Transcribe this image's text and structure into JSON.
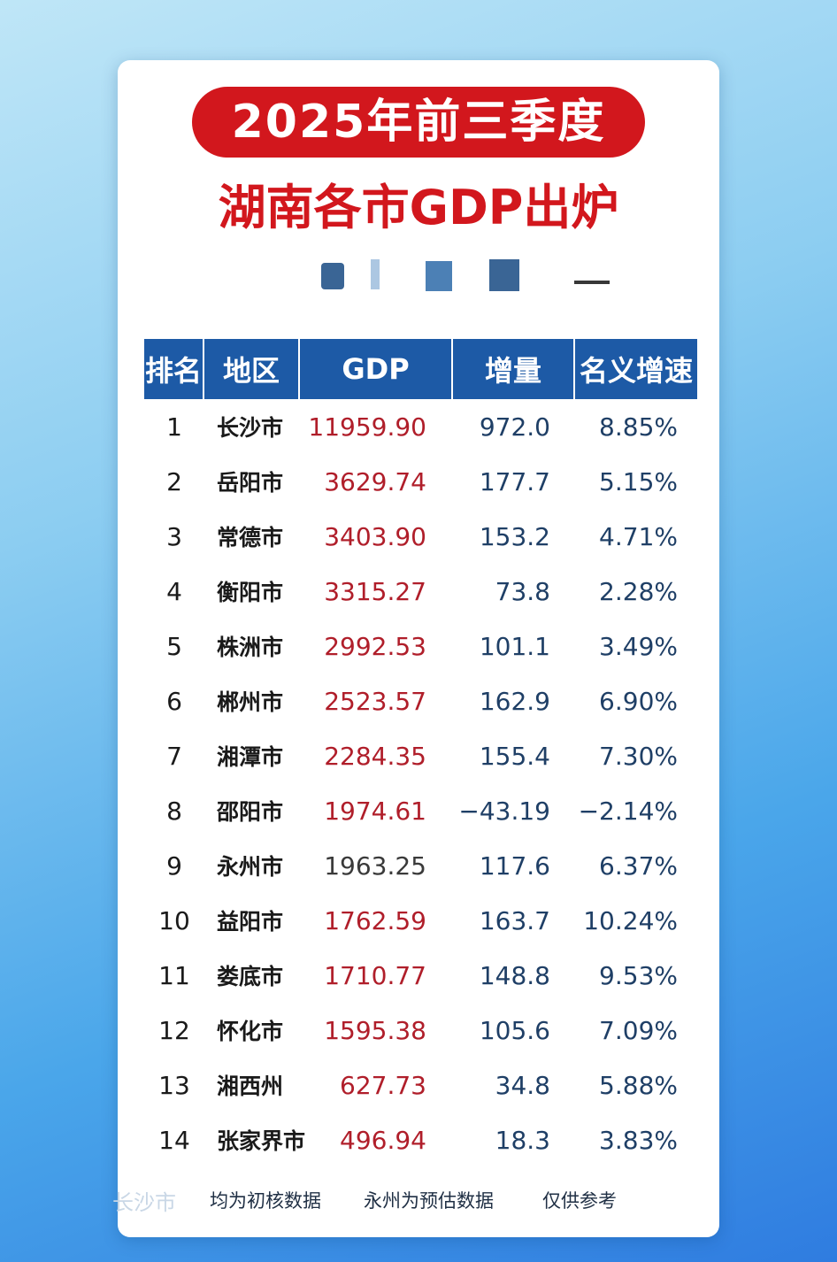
{
  "header": {
    "title": "2025年前三季度",
    "subtitle": "湖南各市GDP出炉"
  },
  "table": {
    "columns": [
      "排名",
      "地区",
      "GDP",
      "增量",
      "名义增速"
    ],
    "rows": [
      {
        "rank": "1",
        "city": "长沙市",
        "gdp": "11959.90",
        "inc": "972.0",
        "rate": "8.85%"
      },
      {
        "rank": "2",
        "city": "岳阳市",
        "gdp": "3629.74",
        "inc": "177.7",
        "rate": "5.15%"
      },
      {
        "rank": "3",
        "city": "常德市",
        "gdp": "3403.90",
        "inc": "153.2",
        "rate": "4.71%"
      },
      {
        "rank": "4",
        "city": "衡阳市",
        "gdp": "3315.27",
        "inc": "73.8",
        "rate": "2.28%"
      },
      {
        "rank": "5",
        "city": "株洲市",
        "gdp": "2992.53",
        "inc": "101.1",
        "rate": "3.49%"
      },
      {
        "rank": "6",
        "city": "郴州市",
        "gdp": "2523.57",
        "inc": "162.9",
        "rate": "6.90%"
      },
      {
        "rank": "7",
        "city": "湘潭市",
        "gdp": "2284.35",
        "inc": "155.4",
        "rate": "7.30%"
      },
      {
        "rank": "8",
        "city": "邵阳市",
        "gdp": "1974.61",
        "inc": "−43.19",
        "rate": "−2.14%"
      },
      {
        "rank": "9",
        "city": "永州市",
        "gdp": "1963.25",
        "inc": "117.6",
        "rate": "6.37%"
      },
      {
        "rank": "10",
        "city": "益阳市",
        "gdp": "1762.59",
        "inc": "163.7",
        "rate": "10.24%"
      },
      {
        "rank": "11",
        "city": "娄底市",
        "gdp": "1710.77",
        "inc": "148.8",
        "rate": "9.53%"
      },
      {
        "rank": "12",
        "city": "怀化市",
        "gdp": "1595.38",
        "inc": "105.6",
        "rate": "7.09%"
      },
      {
        "rank": "13",
        "city": "湘西州",
        "gdp": "627.73",
        "inc": "34.8",
        "rate": "5.88%"
      },
      {
        "rank": "14",
        "city": "张家界市",
        "gdp": "496.94",
        "inc": "18.3",
        "rate": "3.83%"
      }
    ]
  },
  "footer": {
    "ghost": "长沙市",
    "note1": "均为初核数据",
    "note2": "永州为预估数据",
    "note3": "仅供参考"
  },
  "colors": {
    "title_red": "#d2171d",
    "header_blue": "#1d5aa6",
    "gdp_red": "#b01e2a"
  }
}
